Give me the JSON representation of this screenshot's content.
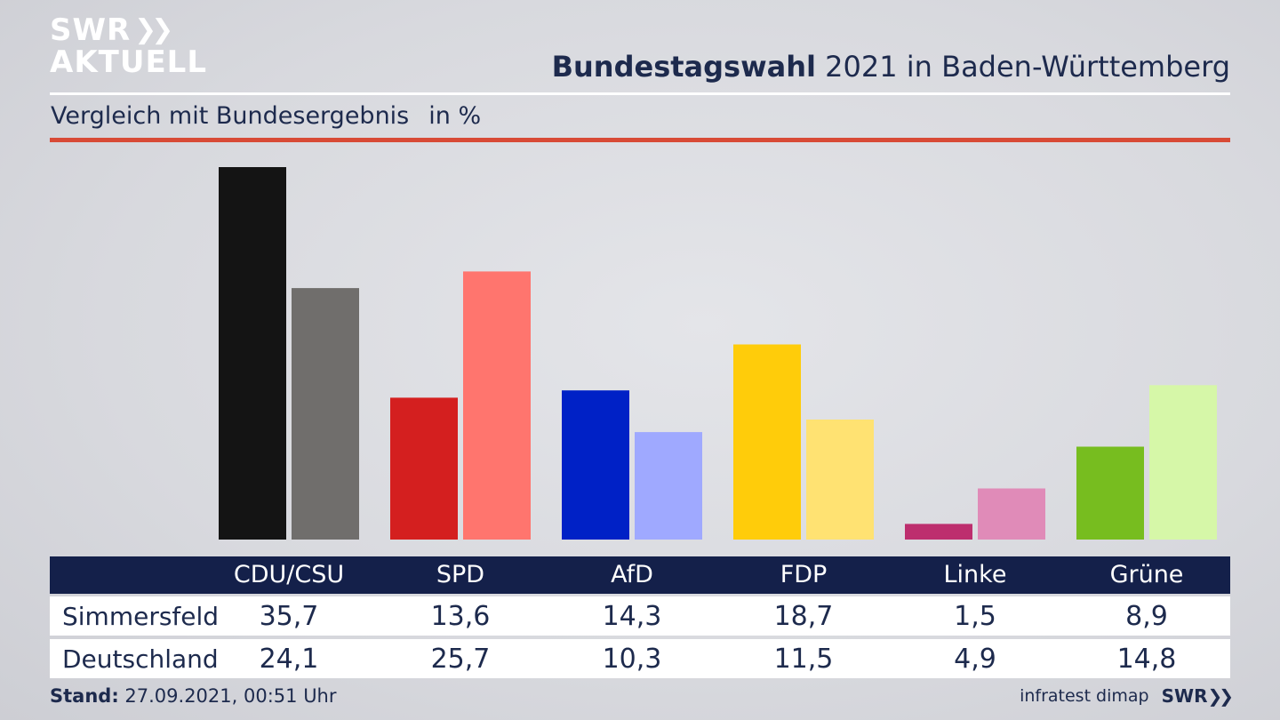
{
  "brand": {
    "logo_top": "SWR",
    "logo_bottom": "AKTUELL",
    "footer_logo": "SWR"
  },
  "header": {
    "title_bold": "Bundestagswahl",
    "title_rest": "2021 in Baden-Württemberg",
    "subtitle": "Vergleich mit Bundesergebnis",
    "unit": "in %"
  },
  "chart_data": {
    "type": "bar",
    "title": "Bundestagswahl 2021 in Baden-Württemberg",
    "subtitle": "Vergleich mit Bundesergebnis",
    "unit": "in %",
    "categories": [
      "CDU/CSU",
      "SPD",
      "AfD",
      "FDP",
      "Linke",
      "Grüne"
    ],
    "series": [
      {
        "name": "Simmersfeld",
        "values": [
          35.7,
          13.6,
          14.3,
          18.7,
          1.5,
          8.9
        ],
        "colors": [
          "#141414",
          "#d41f1f",
          "#0021c6",
          "#ffcc0a",
          "#bd2e6e",
          "#77bd1f"
        ]
      },
      {
        "name": "Deutschland",
        "values": [
          24.1,
          25.7,
          10.3,
          11.5,
          4.9,
          14.8
        ],
        "colors": [
          "#706e6c",
          "#ff756e",
          "#9fa9ff",
          "#ffe272",
          "#e08bb8",
          "#d6f7a8"
        ]
      }
    ],
    "ymax": 35.7,
    "grid": false,
    "legend": "table-below"
  },
  "footer": {
    "stand_label": "Stand:",
    "stand_value": "27.09.2021, 00:51 Uhr",
    "source": "infratest dimap"
  }
}
